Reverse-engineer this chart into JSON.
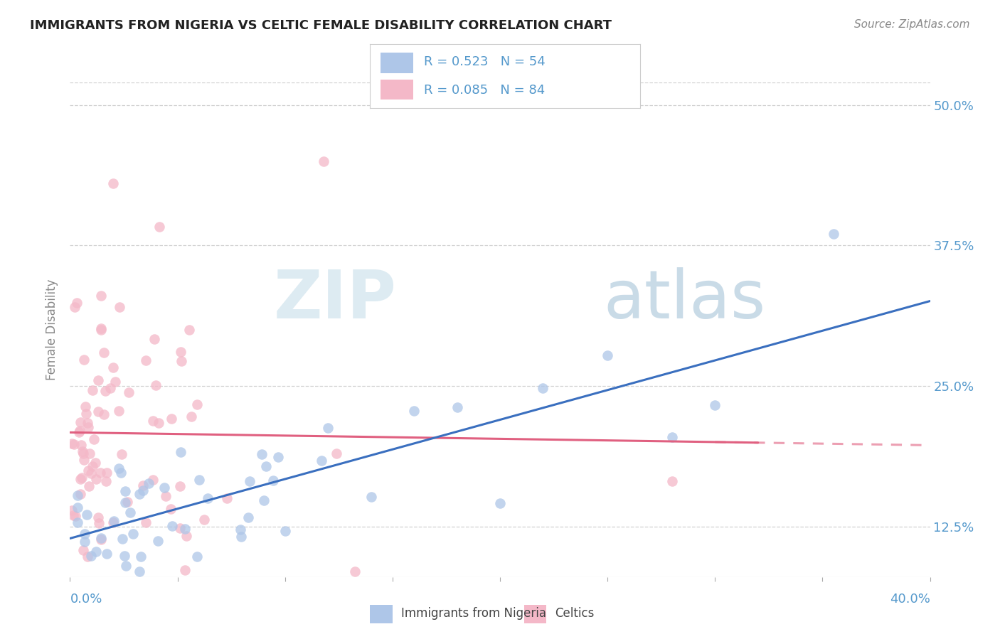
{
  "title": "IMMIGRANTS FROM NIGERIA VS CELTIC FEMALE DISABILITY CORRELATION CHART",
  "source": "Source: ZipAtlas.com",
  "ylabel": "Female Disability",
  "xlim": [
    0.0,
    0.4
  ],
  "ylim": [
    0.08,
    0.52
  ],
  "yticks": [
    0.125,
    0.25,
    0.375,
    0.5
  ],
  "ytick_labels": [
    "12.5%",
    "25.0%",
    "37.5%",
    "50.0%"
  ],
  "watermark_zip": "ZIP",
  "watermark_atlas": "atlas",
  "blue_label": "Immigrants from Nigeria",
  "pink_label": "Celtics",
  "blue_color": "#aec6e8",
  "pink_color": "#f4b8c8",
  "blue_line_color": "#3a6fbf",
  "pink_line_color": "#e06080",
  "background_color": "#ffffff",
  "grid_color": "#d0d0d0",
  "title_color": "#222222",
  "source_color": "#888888",
  "axis_label_color": "#888888",
  "tick_label_color": "#5599cc",
  "legend_text_color": "#5599cc",
  "legend_r_blue": "R = 0.523",
  "legend_n_blue": "N = 54",
  "legend_r_pink": "R = 0.085",
  "legend_n_pink": "N = 84"
}
